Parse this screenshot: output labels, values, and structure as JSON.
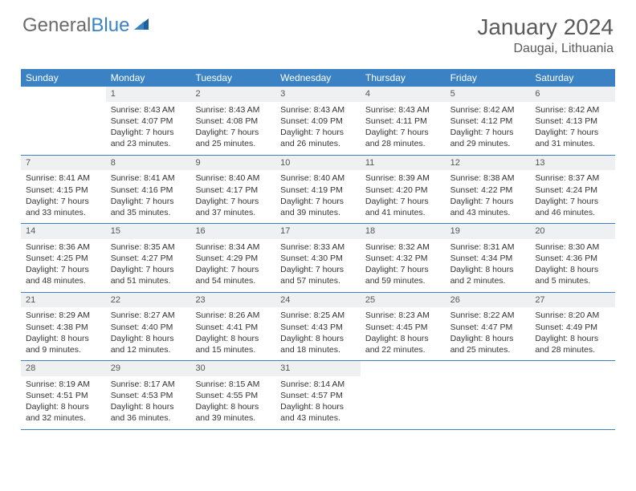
{
  "brand": {
    "part1": "General",
    "part2": "Blue"
  },
  "title": "January 2024",
  "location": "Daugai, Lithuania",
  "colors": {
    "header_bg": "#3b82c4",
    "header_text": "#ffffff",
    "daynum_bg": "#eef0f2",
    "text": "#333333",
    "muted": "#5a5a5a",
    "rule": "#3b82c4"
  },
  "day_names": [
    "Sunday",
    "Monday",
    "Tuesday",
    "Wednesday",
    "Thursday",
    "Friday",
    "Saturday"
  ],
  "weeks": [
    [
      {
        "n": "",
        "sr": "",
        "ss": "",
        "dl": ""
      },
      {
        "n": "1",
        "sr": "Sunrise: 8:43 AM",
        "ss": "Sunset: 4:07 PM",
        "dl": "Daylight: 7 hours and 23 minutes."
      },
      {
        "n": "2",
        "sr": "Sunrise: 8:43 AM",
        "ss": "Sunset: 4:08 PM",
        "dl": "Daylight: 7 hours and 25 minutes."
      },
      {
        "n": "3",
        "sr": "Sunrise: 8:43 AM",
        "ss": "Sunset: 4:09 PM",
        "dl": "Daylight: 7 hours and 26 minutes."
      },
      {
        "n": "4",
        "sr": "Sunrise: 8:43 AM",
        "ss": "Sunset: 4:11 PM",
        "dl": "Daylight: 7 hours and 28 minutes."
      },
      {
        "n": "5",
        "sr": "Sunrise: 8:42 AM",
        "ss": "Sunset: 4:12 PM",
        "dl": "Daylight: 7 hours and 29 minutes."
      },
      {
        "n": "6",
        "sr": "Sunrise: 8:42 AM",
        "ss": "Sunset: 4:13 PM",
        "dl": "Daylight: 7 hours and 31 minutes."
      }
    ],
    [
      {
        "n": "7",
        "sr": "Sunrise: 8:41 AM",
        "ss": "Sunset: 4:15 PM",
        "dl": "Daylight: 7 hours and 33 minutes."
      },
      {
        "n": "8",
        "sr": "Sunrise: 8:41 AM",
        "ss": "Sunset: 4:16 PM",
        "dl": "Daylight: 7 hours and 35 minutes."
      },
      {
        "n": "9",
        "sr": "Sunrise: 8:40 AM",
        "ss": "Sunset: 4:17 PM",
        "dl": "Daylight: 7 hours and 37 minutes."
      },
      {
        "n": "10",
        "sr": "Sunrise: 8:40 AM",
        "ss": "Sunset: 4:19 PM",
        "dl": "Daylight: 7 hours and 39 minutes."
      },
      {
        "n": "11",
        "sr": "Sunrise: 8:39 AM",
        "ss": "Sunset: 4:20 PM",
        "dl": "Daylight: 7 hours and 41 minutes."
      },
      {
        "n": "12",
        "sr": "Sunrise: 8:38 AM",
        "ss": "Sunset: 4:22 PM",
        "dl": "Daylight: 7 hours and 43 minutes."
      },
      {
        "n": "13",
        "sr": "Sunrise: 8:37 AM",
        "ss": "Sunset: 4:24 PM",
        "dl": "Daylight: 7 hours and 46 minutes."
      }
    ],
    [
      {
        "n": "14",
        "sr": "Sunrise: 8:36 AM",
        "ss": "Sunset: 4:25 PM",
        "dl": "Daylight: 7 hours and 48 minutes."
      },
      {
        "n": "15",
        "sr": "Sunrise: 8:35 AM",
        "ss": "Sunset: 4:27 PM",
        "dl": "Daylight: 7 hours and 51 minutes."
      },
      {
        "n": "16",
        "sr": "Sunrise: 8:34 AM",
        "ss": "Sunset: 4:29 PM",
        "dl": "Daylight: 7 hours and 54 minutes."
      },
      {
        "n": "17",
        "sr": "Sunrise: 8:33 AM",
        "ss": "Sunset: 4:30 PM",
        "dl": "Daylight: 7 hours and 57 minutes."
      },
      {
        "n": "18",
        "sr": "Sunrise: 8:32 AM",
        "ss": "Sunset: 4:32 PM",
        "dl": "Daylight: 7 hours and 59 minutes."
      },
      {
        "n": "19",
        "sr": "Sunrise: 8:31 AM",
        "ss": "Sunset: 4:34 PM",
        "dl": "Daylight: 8 hours and 2 minutes."
      },
      {
        "n": "20",
        "sr": "Sunrise: 8:30 AM",
        "ss": "Sunset: 4:36 PM",
        "dl": "Daylight: 8 hours and 5 minutes."
      }
    ],
    [
      {
        "n": "21",
        "sr": "Sunrise: 8:29 AM",
        "ss": "Sunset: 4:38 PM",
        "dl": "Daylight: 8 hours and 9 minutes."
      },
      {
        "n": "22",
        "sr": "Sunrise: 8:27 AM",
        "ss": "Sunset: 4:40 PM",
        "dl": "Daylight: 8 hours and 12 minutes."
      },
      {
        "n": "23",
        "sr": "Sunrise: 8:26 AM",
        "ss": "Sunset: 4:41 PM",
        "dl": "Daylight: 8 hours and 15 minutes."
      },
      {
        "n": "24",
        "sr": "Sunrise: 8:25 AM",
        "ss": "Sunset: 4:43 PM",
        "dl": "Daylight: 8 hours and 18 minutes."
      },
      {
        "n": "25",
        "sr": "Sunrise: 8:23 AM",
        "ss": "Sunset: 4:45 PM",
        "dl": "Daylight: 8 hours and 22 minutes."
      },
      {
        "n": "26",
        "sr": "Sunrise: 8:22 AM",
        "ss": "Sunset: 4:47 PM",
        "dl": "Daylight: 8 hours and 25 minutes."
      },
      {
        "n": "27",
        "sr": "Sunrise: 8:20 AM",
        "ss": "Sunset: 4:49 PM",
        "dl": "Daylight: 8 hours and 28 minutes."
      }
    ],
    [
      {
        "n": "28",
        "sr": "Sunrise: 8:19 AM",
        "ss": "Sunset: 4:51 PM",
        "dl": "Daylight: 8 hours and 32 minutes."
      },
      {
        "n": "29",
        "sr": "Sunrise: 8:17 AM",
        "ss": "Sunset: 4:53 PM",
        "dl": "Daylight: 8 hours and 36 minutes."
      },
      {
        "n": "30",
        "sr": "Sunrise: 8:15 AM",
        "ss": "Sunset: 4:55 PM",
        "dl": "Daylight: 8 hours and 39 minutes."
      },
      {
        "n": "31",
        "sr": "Sunrise: 8:14 AM",
        "ss": "Sunset: 4:57 PM",
        "dl": "Daylight: 8 hours and 43 minutes."
      },
      {
        "n": "",
        "sr": "",
        "ss": "",
        "dl": ""
      },
      {
        "n": "",
        "sr": "",
        "ss": "",
        "dl": ""
      },
      {
        "n": "",
        "sr": "",
        "ss": "",
        "dl": ""
      }
    ]
  ]
}
